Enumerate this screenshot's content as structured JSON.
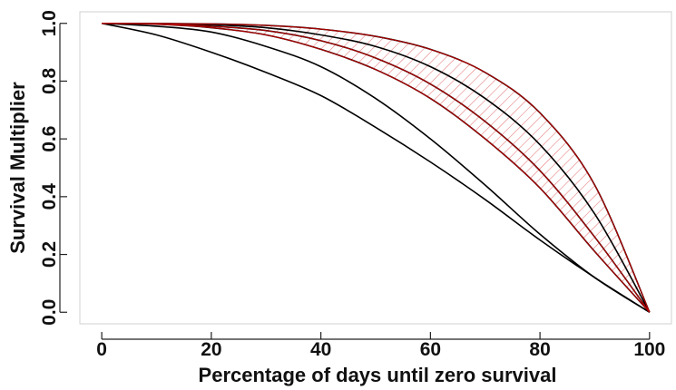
{
  "chart_data": {
    "type": "line",
    "title": "",
    "xlabel": "Percentage of days until zero survival",
    "ylabel": "Survival Multiplier",
    "xlim": [
      -4,
      104
    ],
    "ylim": [
      -0.04,
      1.04
    ],
    "x_ticks": [
      0,
      20,
      40,
      60,
      80,
      100
    ],
    "x_tick_labels": [
      "0",
      "20",
      "40",
      "60",
      "80",
      "100"
    ],
    "y_ticks": [
      0.0,
      0.2,
      0.4,
      0.6,
      0.8,
      1.0
    ],
    "y_tick_labels": [
      "0.0",
      "0.2",
      "0.4",
      "0.6",
      "0.8",
      "1.0"
    ],
    "grid": false,
    "legend": "none",
    "colors": {
      "curve": "#000000",
      "highlight": "#c00000",
      "hatch": "#e06060"
    },
    "series": [
      {
        "x": [
          0,
          10,
          20,
          30,
          40,
          50,
          60,
          70,
          80,
          90,
          100
        ],
        "y": [
          1.0,
          0.96,
          0.9,
          0.83,
          0.75,
          0.64,
          0.52,
          0.39,
          0.25,
          0.12,
          0.0
        ]
      },
      {
        "x": [
          0,
          10,
          20,
          30,
          40,
          50,
          60,
          70,
          80,
          90,
          100
        ],
        "y": [
          1.0,
          0.99,
          0.97,
          0.92,
          0.85,
          0.74,
          0.6,
          0.44,
          0.27,
          0.12,
          0.0
        ]
      },
      {
        "x": [
          0,
          10,
          20,
          30,
          40,
          50,
          60,
          70,
          80,
          90,
          100
        ],
        "y": [
          1.0,
          0.997,
          0.985,
          0.96,
          0.91,
          0.84,
          0.74,
          0.6,
          0.43,
          0.21,
          0.0
        ]
      },
      {
        "x": [
          0,
          10,
          20,
          30,
          40,
          50,
          60,
          70,
          80,
          90,
          100
        ],
        "y": [
          1.0,
          0.998,
          0.99,
          0.975,
          0.94,
          0.88,
          0.79,
          0.66,
          0.49,
          0.26,
          0.0
        ]
      },
      {
        "x": [
          0,
          10,
          20,
          30,
          40,
          50,
          60,
          70,
          80,
          90,
          100
        ],
        "y": [
          1.0,
          0.999,
          0.995,
          0.985,
          0.96,
          0.92,
          0.85,
          0.74,
          0.58,
          0.34,
          0.0
        ]
      },
      {
        "x": [
          0,
          10,
          20,
          30,
          40,
          50,
          60,
          70,
          80,
          90,
          100
        ],
        "y": [
          1.0,
          0.9995,
          0.998,
          0.993,
          0.98,
          0.955,
          0.91,
          0.83,
          0.69,
          0.44,
          0.0
        ]
      }
    ],
    "shaded_band": {
      "x": [
        0,
        10,
        20,
        30,
        40,
        50,
        60,
        70,
        80,
        90,
        100
      ],
      "lower": [
        1.0,
        0.997,
        0.985,
        0.96,
        0.91,
        0.84,
        0.74,
        0.6,
        0.43,
        0.21,
        0.0
      ],
      "upper": [
        1.0,
        0.9995,
        0.998,
        0.993,
        0.98,
        0.955,
        0.91,
        0.83,
        0.69,
        0.44,
        0.0
      ]
    },
    "highlight_series": [
      3
    ]
  }
}
